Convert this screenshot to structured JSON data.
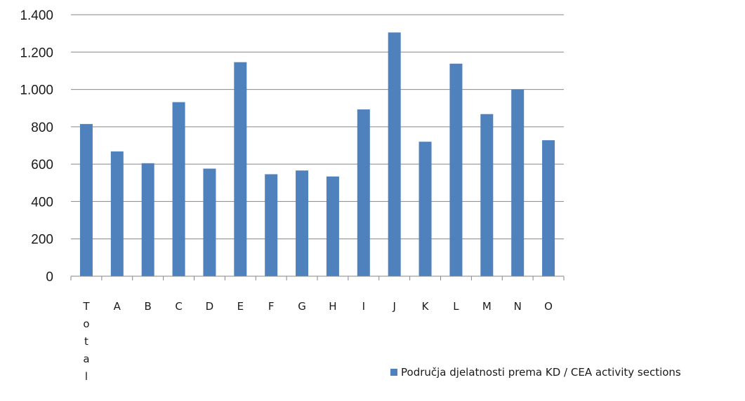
{
  "chart_data": {
    "type": "bar",
    "categories": [
      "Total",
      "A",
      "B",
      "C",
      "D",
      "E",
      "F",
      "G",
      "H",
      "I",
      "J",
      "K",
      "L",
      "M",
      "N",
      "O"
    ],
    "series": [
      {
        "name": "Područja djelatnosti prema KD / CEA activity sections",
        "values": [
          815,
          668,
          605,
          932,
          576,
          1146,
          546,
          566,
          534,
          893,
          1305,
          720,
          1138,
          868,
          1000,
          728
        ],
        "color": "#4f81bd"
      }
    ],
    "ylim": [
      0,
      1400
    ],
    "yticks": [
      0,
      200,
      400,
      600,
      800,
      1000,
      1200,
      1400
    ],
    "ytick_labels": [
      "0",
      "200",
      "400",
      "600",
      "800",
      "1.000",
      "1.200",
      "1.400"
    ],
    "grid": true,
    "legend_position": "bottom-right"
  }
}
